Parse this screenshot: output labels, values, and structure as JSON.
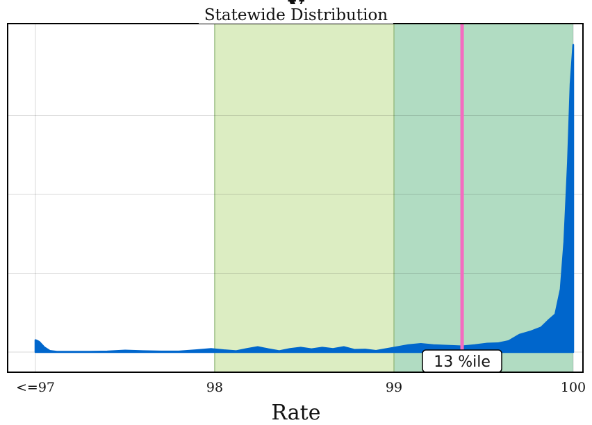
{
  "chart_data": {
    "type": "area",
    "title": "y",
    "subtitle": "Statewide Distribution",
    "xlabel": "Rate",
    "ylabel": "",
    "xlim": [
      97,
      100
    ],
    "ylim": [
      0,
      1.0
    ],
    "x_ticks": [
      {
        "value": 97,
        "label": "<=97"
      },
      {
        "value": 98,
        "label": "98"
      },
      {
        "value": 99,
        "label": "99"
      },
      {
        "value": 100,
        "label": "100"
      }
    ],
    "y_grid": [
      0,
      0.25,
      0.5,
      0.75
    ],
    "grid": true,
    "bands": [
      {
        "from": 98,
        "to": 99,
        "color": "#dcedc2"
      },
      {
        "from": 99,
        "to": 100,
        "color": "#b1dcc2"
      }
    ],
    "marker": {
      "value": 99.38,
      "label": "13 %ile",
      "color": "#f46bc0"
    },
    "series": [
      {
        "color": "#0066cc",
        "points": [
          [
            97.0,
            0.038
          ],
          [
            97.02,
            0.033
          ],
          [
            97.05,
            0.015
          ],
          [
            97.08,
            0.004
          ],
          [
            97.12,
            0.001
          ],
          [
            97.2,
            0.001
          ],
          [
            97.3,
            0.001
          ],
          [
            97.4,
            0.002
          ],
          [
            97.5,
            0.005
          ],
          [
            97.6,
            0.003
          ],
          [
            97.7,
            0.002
          ],
          [
            97.8,
            0.002
          ],
          [
            97.9,
            0.006
          ],
          [
            97.98,
            0.01
          ],
          [
            98.05,
            0.006
          ],
          [
            98.12,
            0.003
          ],
          [
            98.18,
            0.01
          ],
          [
            98.24,
            0.016
          ],
          [
            98.3,
            0.009
          ],
          [
            98.36,
            0.003
          ],
          [
            98.42,
            0.01
          ],
          [
            98.48,
            0.014
          ],
          [
            98.54,
            0.009
          ],
          [
            98.6,
            0.014
          ],
          [
            98.66,
            0.01
          ],
          [
            98.72,
            0.016
          ],
          [
            98.78,
            0.007
          ],
          [
            98.84,
            0.008
          ],
          [
            98.9,
            0.004
          ],
          [
            98.96,
            0.01
          ],
          [
            99.02,
            0.016
          ],
          [
            99.08,
            0.022
          ],
          [
            99.15,
            0.026
          ],
          [
            99.22,
            0.022
          ],
          [
            99.3,
            0.02
          ],
          [
            99.38,
            0.018
          ],
          [
            99.45,
            0.022
          ],
          [
            99.52,
            0.027
          ],
          [
            99.58,
            0.028
          ],
          [
            99.64,
            0.035
          ],
          [
            99.7,
            0.055
          ],
          [
            99.76,
            0.065
          ],
          [
            99.82,
            0.078
          ],
          [
            99.86,
            0.1
          ],
          [
            99.9,
            0.12
          ],
          [
            99.93,
            0.2
          ],
          [
            99.95,
            0.35
          ],
          [
            99.97,
            0.6
          ],
          [
            99.985,
            0.85
          ],
          [
            100.0,
            0.975
          ]
        ]
      }
    ]
  }
}
